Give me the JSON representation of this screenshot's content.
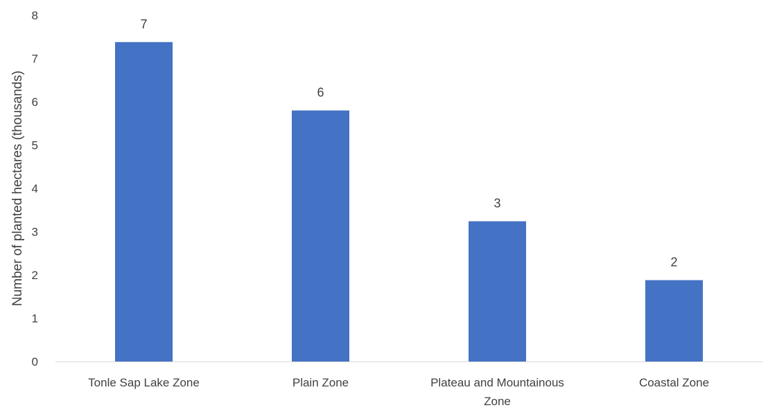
{
  "chart_data": {
    "type": "bar",
    "title": "",
    "xlabel": "",
    "ylabel": "Number of planted hectares (thousands)",
    "categories": [
      [
        "Tonle Sap Lake Zone"
      ],
      [
        "Plain Zone"
      ],
      [
        "Plateau and Mountainous",
        "Zone"
      ],
      [
        "Coastal Zone"
      ]
    ],
    "values": [
      7.38,
      5.8,
      3.24,
      1.88
    ],
    "data_labels": [
      "7",
      "6",
      "3",
      "2"
    ],
    "ylim": [
      0,
      8
    ],
    "yticks": [
      0,
      1,
      2,
      3,
      4,
      5,
      6,
      7,
      8
    ],
    "grid": false,
    "legend": "none",
    "bar_color": "#4472C4"
  }
}
